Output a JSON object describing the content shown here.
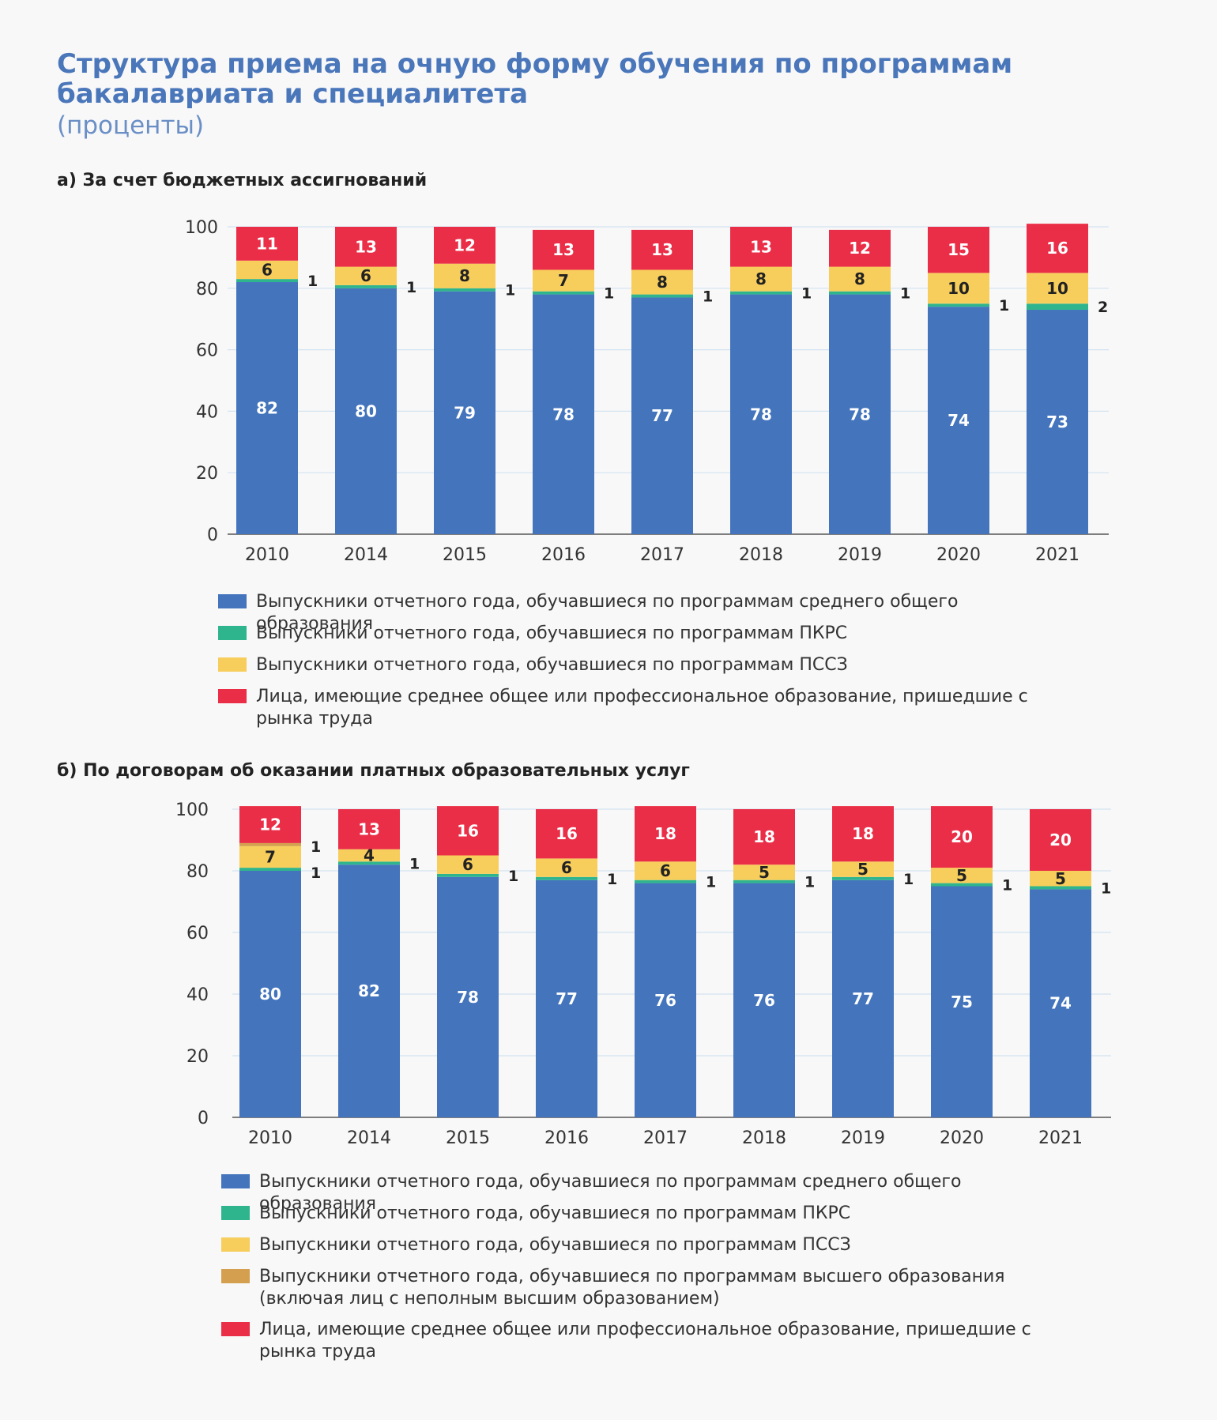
{
  "title": "Структура приема на очную форму обучения по программам бакалавриата и специалитета",
  "subtitle": "(проценты)",
  "colors": {
    "school": "#4374bc",
    "pkrs": "#2fb58d",
    "pssz": "#f7cd5c",
    "higher": "#d4a04f",
    "labor": "#ea2e47",
    "grid": "#d3e3f0",
    "axis": "#555555"
  },
  "chart_data": [
    {
      "type": "bar",
      "stacked": true,
      "title": "а) За счет бюджетных ассигнований",
      "xlabel": "",
      "ylabel": "",
      "ylim": [
        0,
        100
      ],
      "yticks": [
        0,
        20,
        40,
        60,
        80,
        100
      ],
      "grid": true,
      "categories": [
        "2010",
        "2014",
        "2015",
        "2016",
        "2017",
        "2018",
        "2019",
        "2020",
        "2021"
      ],
      "series": [
        {
          "name": "Выпускники отчетного года, обучавшиеся по программам среднего общего образования",
          "key": "school",
          "values": [
            82,
            80,
            79,
            78,
            77,
            78,
            78,
            74,
            73
          ]
        },
        {
          "name": "Выпускники отчетного года, обучавшиеся по программам ПКРС",
          "key": "pkrs",
          "values": [
            1,
            1,
            1,
            1,
            1,
            1,
            1,
            1,
            2
          ]
        },
        {
          "name": "Выпускники отчетного года, обучавшиеся по программам ПССЗ",
          "key": "pssz",
          "values": [
            6,
            6,
            8,
            7,
            8,
            8,
            8,
            10,
            10
          ]
        },
        {
          "name": "Лица, имеющие среднее общее или профессиональное образование, пришедшие с рынка труда",
          "key": "labor",
          "values": [
            11,
            13,
            12,
            13,
            13,
            13,
            12,
            15,
            16
          ]
        }
      ]
    },
    {
      "type": "bar",
      "stacked": true,
      "title": "б) По договорам об оказании платных образовательных услуг",
      "xlabel": "",
      "ylabel": "",
      "ylim": [
        0,
        100
      ],
      "yticks": [
        0,
        20,
        40,
        60,
        80,
        100
      ],
      "grid": true,
      "categories": [
        "2010",
        "2014",
        "2015",
        "2016",
        "2017",
        "2018",
        "2019",
        "2020",
        "2021"
      ],
      "series": [
        {
          "name": "Выпускники отчетного года, обучавшиеся по программам среднего общего образования",
          "key": "school",
          "values": [
            80,
            82,
            78,
            77,
            76,
            76,
            77,
            75,
            74
          ]
        },
        {
          "name": "Выпускники отчетного года, обучавшиеся по программам ПКРС",
          "key": "pkrs",
          "values": [
            1,
            1,
            1,
            1,
            1,
            1,
            1,
            1,
            1
          ]
        },
        {
          "name": "Выпускники отчетного года, обучавшиеся по программам ПССЗ",
          "key": "pssz",
          "values": [
            7,
            4,
            6,
            6,
            6,
            5,
            5,
            5,
            5
          ]
        },
        {
          "name": "Выпускники отчетного года, обучавшиеся по программам высшего образования (включая лиц с неполным высшим образованием)",
          "key": "higher",
          "values": [
            1,
            null,
            null,
            null,
            null,
            null,
            null,
            null,
            null
          ]
        },
        {
          "name": "Лица, имеющие среднее общее или профессиональное образование, пришедшие с рынка труда",
          "key": "labor",
          "values": [
            12,
            13,
            16,
            16,
            18,
            18,
            18,
            20,
            20
          ]
        }
      ]
    }
  ]
}
